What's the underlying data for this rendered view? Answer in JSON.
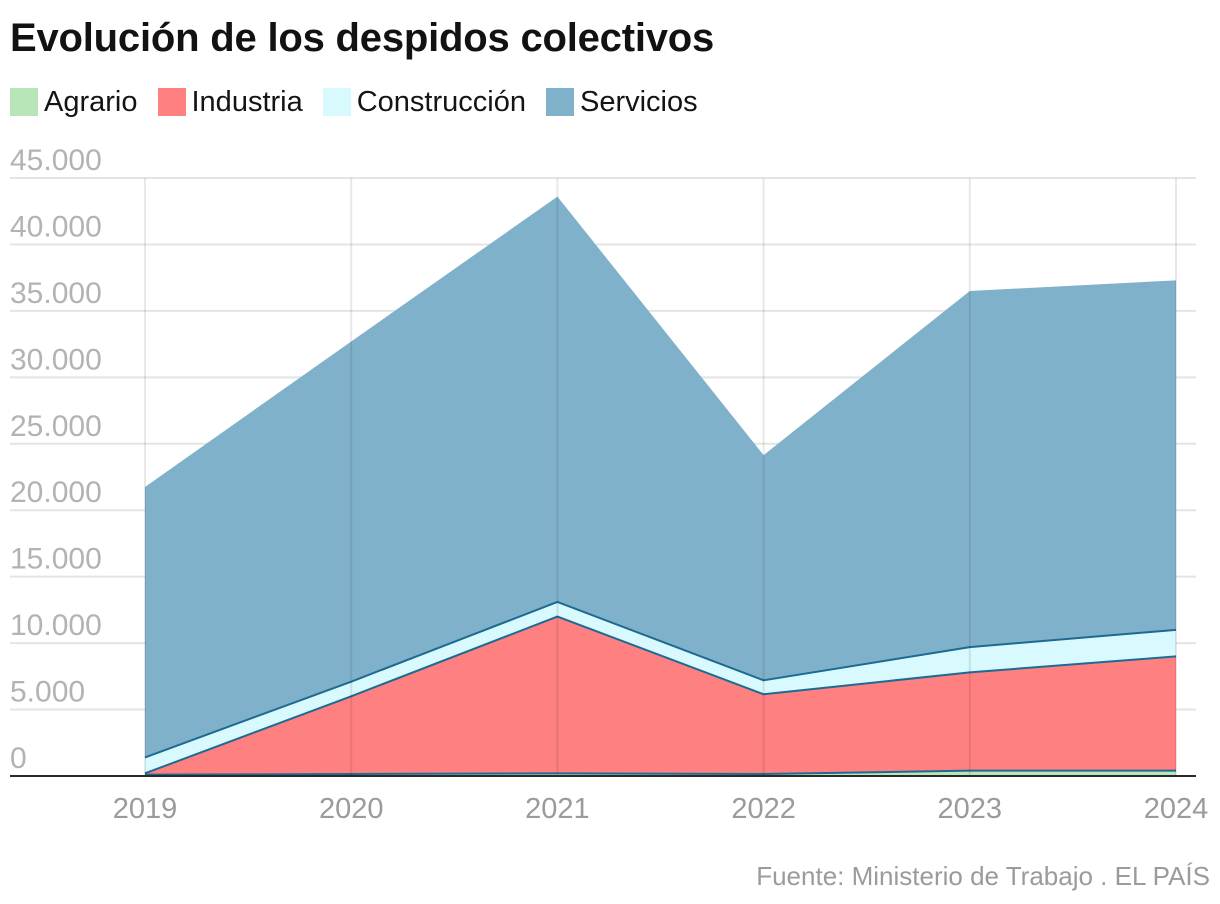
{
  "chart_data": {
    "type": "area",
    "stacked": true,
    "title": "Evolución de los despidos colectivos",
    "categories": [
      "2019",
      "2020",
      "2021",
      "2022",
      "2023",
      "2024"
    ],
    "series": [
      {
        "name": "Agrario",
        "color": "#b8e6b8",
        "values": [
          100,
          150,
          200,
          150,
          400,
          400
        ]
      },
      {
        "name": "Industria",
        "color": "#ff8080",
        "values": [
          100,
          5850,
          11800,
          6000,
          7400,
          8600
        ]
      },
      {
        "name": "Construcción",
        "color": "#d8f9fd",
        "values": [
          1200,
          1100,
          1100,
          1050,
          1900,
          2000
        ]
      },
      {
        "name": "Servicios",
        "color": "#80b1ca",
        "values": [
          20350,
          25600,
          30500,
          16950,
          26800,
          26300
        ]
      }
    ],
    "ylim": [
      0,
      45000
    ],
    "yticks": [
      {
        "value": 0,
        "label": "0"
      },
      {
        "value": 5000,
        "label": "5.000"
      },
      {
        "value": 10000,
        "label": "10.000"
      },
      {
        "value": 15000,
        "label": "15.000"
      },
      {
        "value": 20000,
        "label": "20.000"
      },
      {
        "value": 25000,
        "label": "25.000"
      },
      {
        "value": 30000,
        "label": "30.000"
      },
      {
        "value": 35000,
        "label": "35.000"
      },
      {
        "value": 40000,
        "label": "40.000"
      },
      {
        "value": 45000,
        "label": "45.000"
      }
    ],
    "grid": true,
    "legend_position": "top-left",
    "boundary_color": "#1d6a93"
  },
  "source": "Fuente: Ministerio de Trabajo . EL PAÍS"
}
